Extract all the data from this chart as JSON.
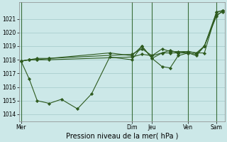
{
  "xlabel": "Pression niveau de la mer( hPa )",
  "bg_color": "#cce8e8",
  "grid_color": "#aacece",
  "line_color": "#2d5a1e",
  "marker_color": "#2d5a1e",
  "ylim": [
    1013.5,
    1022.2
  ],
  "yticks": [
    1014,
    1015,
    1016,
    1017,
    1018,
    1019,
    1020,
    1021
  ],
  "day_labels": [
    "Mer",
    "Dim",
    "Jeu",
    "Ven",
    "Sam"
  ],
  "day_positions": [
    0,
    55,
    65,
    83,
    97
  ],
  "xlim": [
    -1,
    101
  ],
  "series1_x": [
    0,
    4,
    8,
    14,
    55,
    60,
    65,
    70,
    74,
    78,
    83,
    87,
    91,
    97,
    100
  ],
  "series1_y": [
    1017.9,
    1018.0,
    1018.0,
    1018.0,
    1018.2,
    1018.4,
    1018.3,
    1018.5,
    1018.5,
    1018.5,
    1018.6,
    1018.5,
    1018.5,
    1021.5,
    1021.6
  ],
  "series2_x": [
    0,
    4,
    8,
    14,
    20,
    28,
    35,
    44,
    55,
    60,
    65,
    70,
    74,
    78,
    83,
    87,
    91,
    97,
    100
  ],
  "series2_y": [
    1017.9,
    1016.6,
    1015.0,
    1014.8,
    1015.1,
    1014.4,
    1015.5,
    1018.2,
    1018.0,
    1019.0,
    1018.1,
    1017.5,
    1017.4,
    1018.3,
    1018.5,
    1018.3,
    1019.0,
    1021.3,
    1021.5
  ],
  "series3_x": [
    0,
    4,
    8,
    14,
    55,
    60,
    65,
    70,
    74,
    78,
    83,
    87,
    91,
    97,
    100
  ],
  "series3_y": [
    1017.9,
    1018.0,
    1018.0,
    1018.1,
    1018.4,
    1018.8,
    1018.3,
    1018.8,
    1018.6,
    1018.6,
    1018.6,
    1018.5,
    1019.0,
    1021.5,
    1021.6
  ],
  "series4_x": [
    0,
    4,
    8,
    14,
    44,
    55,
    60,
    65,
    70,
    74,
    78,
    83,
    87,
    91,
    97,
    100
  ],
  "series4_y": [
    1017.9,
    1018.0,
    1018.1,
    1018.1,
    1018.5,
    1018.3,
    1019.0,
    1018.1,
    1018.5,
    1018.7,
    1018.5,
    1018.5,
    1018.4,
    1019.0,
    1021.2,
    1021.6
  ]
}
